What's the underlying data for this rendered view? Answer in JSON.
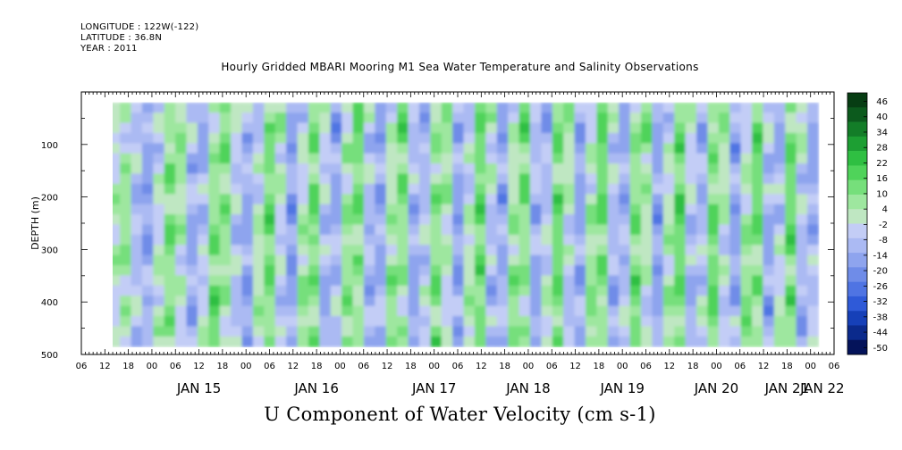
{
  "header": {
    "longitude": "LONGITUDE : 122W(-122)",
    "latitude": "LATITUDE : 36.8N",
    "year": "YEAR : 2011"
  },
  "chart_data": {
    "type": "heatmap",
    "title": "Hourly Gridded MBARI Mooring M1 Sea Water Temperature and Salinity Observations",
    "xlabel": "U Component of Water Velocity (cm s-1)",
    "ylabel": "DEPTH (m)",
    "ylim": [
      500,
      0
    ],
    "y_ticks": [
      100,
      200,
      300,
      400,
      500
    ],
    "y_tick_labels": [
      "100",
      "200",
      "300",
      "400",
      "500"
    ],
    "x_hour_labels": [
      "06",
      "12",
      "18",
      "00",
      "06",
      "12",
      "18",
      "00",
      "06",
      "12",
      "18",
      "00",
      "06",
      "12",
      "18",
      "00",
      "06",
      "12",
      "18",
      "00",
      "06",
      "12",
      "18",
      "00",
      "06",
      "12",
      "18",
      "00",
      "06",
      "12",
      "18",
      "00",
      "06"
    ],
    "x_day_labels": [
      "JAN 15",
      "JAN 16",
      "JAN 17",
      "JAN 18",
      "JAN 19",
      "JAN 20",
      "JAN 21",
      "JAN 22"
    ],
    "x_range_hours": [
      "JAN 14 06:00",
      "JAN 22 06:00"
    ],
    "data_start_hour_offset": 7,
    "data_end_hour_offset": 188,
    "depth_range": [
      20,
      485
    ],
    "colorbar": {
      "labels": [
        "46",
        "40",
        "34",
        "28",
        "22",
        "16",
        "10",
        "4",
        "-2",
        "-8",
        "-14",
        "-20",
        "-26",
        "-32",
        "-38",
        "-44",
        "-50"
      ],
      "min": -50,
      "max": 50,
      "colors": [
        "#04135a",
        "#0b2a8c",
        "#1640b8",
        "#2f5ad8",
        "#4f74e3",
        "#6f8ce8",
        "#8ea4ee",
        "#abbaf3",
        "#c3cdf6",
        "#bfe7c2",
        "#9ee79f",
        "#76df7b",
        "#4fd35a",
        "#2fbf42",
        "#1d9f33",
        "#137d28",
        "#0c5a1d",
        "#073d13"
      ]
    },
    "hourly_bands": [
      [
        -2,
        6,
        -1
      ],
      [
        1,
        10,
        4
      ],
      [
        -4,
        -8,
        -3
      ],
      [
        -10,
        -14,
        -6
      ],
      [
        -6,
        2,
        4
      ],
      [
        8,
        14,
        10
      ],
      [
        12,
        6,
        -2
      ],
      [
        -4,
        -10,
        -12
      ],
      [
        -12,
        -6,
        2
      ],
      [
        4,
        12,
        16
      ],
      [
        14,
        10,
        4
      ],
      [
        -2,
        -6,
        -4
      ],
      [
        -8,
        -12,
        -14
      ],
      [
        -6,
        2,
        8
      ],
      [
        10,
        16,
        12
      ],
      [
        6,
        -2,
        -8
      ],
      [
        -12,
        -16,
        -10
      ],
      [
        -4,
        4,
        10
      ],
      [
        12,
        14,
        8
      ],
      [
        2,
        -6,
        -12
      ],
      [
        -14,
        -10,
        -4
      ],
      [
        2,
        8,
        14
      ],
      [
        16,
        12,
        6
      ],
      [
        -2,
        -8,
        -10
      ],
      [
        -14,
        -12,
        -6
      ],
      [
        0,
        6,
        12
      ],
      [
        14,
        10,
        2
      ],
      [
        -4,
        -10,
        -14
      ],
      [
        -12,
        -6,
        0
      ],
      [
        6,
        12,
        14
      ],
      [
        10,
        4,
        -4
      ],
      [
        -8,
        -14,
        -12
      ],
      [
        -6,
        2,
        8
      ],
      [
        12,
        16,
        12
      ],
      [
        4,
        -4,
        -10
      ],
      [
        -14,
        -12,
        -6
      ],
      [
        0,
        8,
        14
      ],
      [
        16,
        12,
        4
      ],
      [
        -4,
        -10,
        -14
      ],
      [
        -12,
        -4,
        4
      ],
      [
        10,
        16,
        14
      ],
      [
        8,
        0,
        -8
      ],
      [
        -12,
        -14,
        -8
      ],
      [
        -2,
        6,
        12
      ],
      [
        16,
        14,
        8
      ],
      [
        0,
        -8,
        -12
      ],
      [
        -14,
        -10,
        -2
      ],
      [
        6,
        12,
        16
      ],
      [
        12,
        4,
        -4
      ],
      [
        -10,
        -14,
        -12
      ],
      [
        -4,
        4,
        10
      ],
      [
        14,
        16,
        10
      ],
      [
        2,
        -6,
        -12
      ],
      [
        -14,
        -8,
        0
      ],
      [
        8,
        14,
        16
      ],
      [
        10,
        2,
        -6
      ],
      [
        -12,
        -14,
        -8
      ],
      [
        -2,
        6,
        14
      ],
      [
        18,
        14,
        6
      ],
      [
        -2,
        -10,
        -14
      ],
      [
        -12,
        -4,
        4
      ],
      [
        12,
        16,
        12
      ],
      [
        4,
        -6,
        -12
      ],
      [
        -14,
        -10,
        -2
      ]
    ]
  }
}
